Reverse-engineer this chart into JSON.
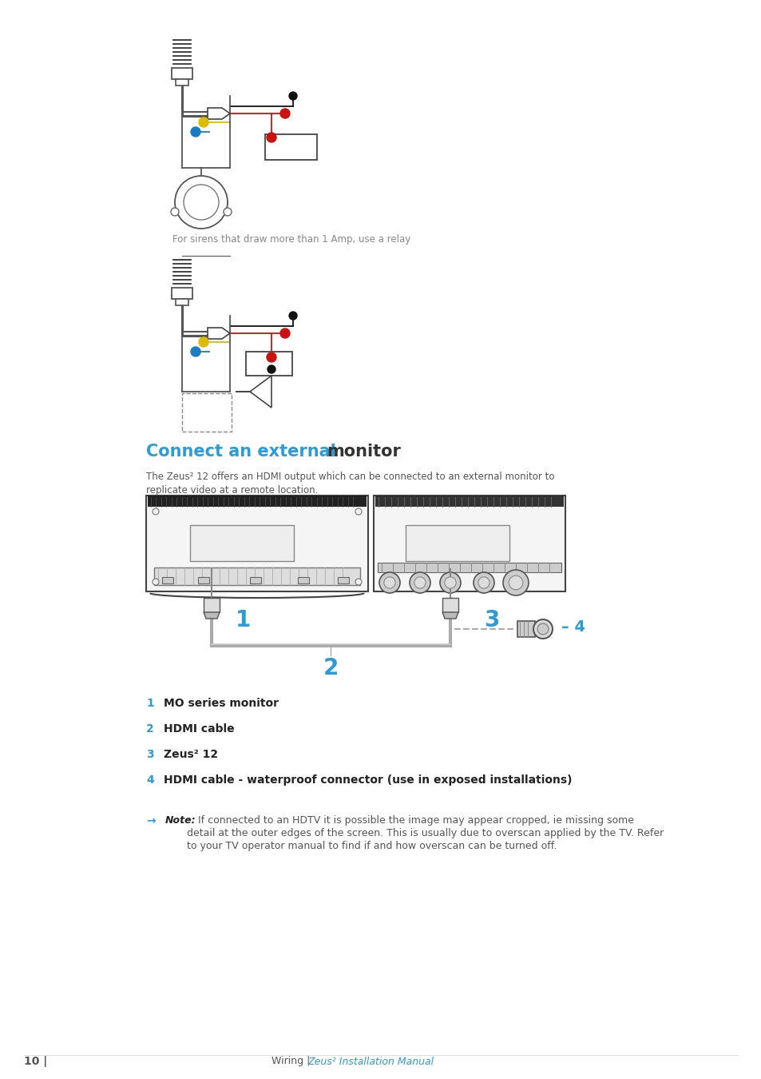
{
  "bg_color": "#ffffff",
  "title_blue": "Connect an external ",
  "title_black": "monitor",
  "title_color_blue": "#2b9cd8",
  "title_color_black": "#333333",
  "body_text_line1": "The Zeus² 12 offers an HDMI output which can be connected to an external monitor to",
  "body_text_line2": "replicate video at a remote location.",
  "body_color": "#555555",
  "label_color": "#2b9cd8",
  "text_color": "#222222",
  "caption_text": "For sirens that draw more than 1 Amp, use a relay",
  "caption_color": "#888888",
  "items": [
    {
      "num": "1",
      "label": "MO series monitor"
    },
    {
      "num": "2",
      "label": "HDMI cable"
    },
    {
      "num": "3",
      "label": "Zeus² 12"
    },
    {
      "num": "4",
      "label": "HDMI cable - waterproof connector (use in exposed installations)"
    }
  ],
  "note_arrow": "→",
  "note_bold": "Note:",
  "note_text_line1": " If connected to an HDTV it is possible the image may appear cropped, ie missing some",
  "note_text_line2": "detail at the outer edges of the screen. This is usually due to overscan applied by the TV. Refer",
  "note_text_line3": "to your TV operator manual to find if and how overscan can be turned off.",
  "footer_left": "10 |",
  "footer_normal": "Wiring | ",
  "footer_italic": "Zeus² Installation Manual",
  "footer_color": "#555555",
  "footer_link_color": "#2b9cd8",
  "wire_black": "#111111",
  "wire_red": "#cc1111",
  "wire_yellow": "#ddbb00",
  "wire_blue": "#1a7bc4",
  "wire_gray": "#666666"
}
